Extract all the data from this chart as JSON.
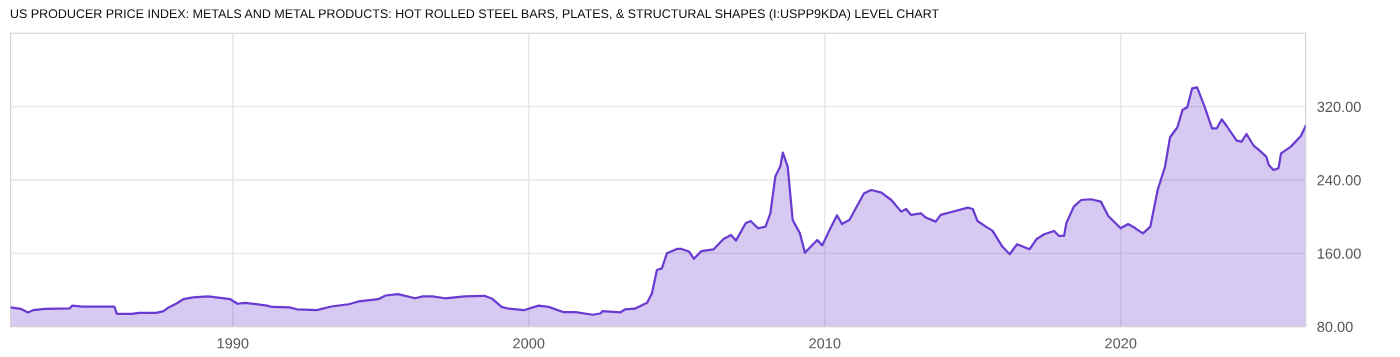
{
  "chart_data": {
    "type": "area",
    "title": "US PRODUCER PRICE INDEX: METALS AND METAL PRODUCTS: HOT ROLLED STEEL BARS, PLATES, & STRUCTURAL SHAPES (I:USPP9KDA) LEVEL CHART",
    "x": [
      "1982-07",
      "1982-11",
      "1983-02",
      "1983-04",
      "1983-09",
      "1984-07",
      "1984-08",
      "1984-12",
      "1986-01",
      "1986-02",
      "1986-08",
      "1986-11",
      "1987-06",
      "1987-09",
      "1987-11",
      "1988-02",
      "1988-05",
      "1988-09",
      "1989-03",
      "1989-12",
      "1990-03",
      "1990-06",
      "1991-03",
      "1991-05",
      "1991-12",
      "1992-03",
      "1992-11",
      "1993-05",
      "1993-12",
      "1994-04",
      "1994-12",
      "1995-03",
      "1995-08",
      "1996-03",
      "1996-06",
      "1996-10",
      "1997-03",
      "1997-11",
      "1998-07",
      "1998-10",
      "1999-02",
      "1999-05",
      "1999-11",
      "2000-05",
      "2000-09",
      "2001-03",
      "2001-08",
      "2002-03",
      "2002-06",
      "2002-07",
      "2003-02",
      "2003-04",
      "2003-08",
      "2004-01",
      "2004-03",
      "2004-05",
      "2004-07",
      "2004-09",
      "2005-01",
      "2005-03",
      "2005-06",
      "2005-08",
      "2005-11",
      "2006-04",
      "2006-08",
      "2006-11",
      "2007-01",
      "2007-05",
      "2007-07",
      "2007-10",
      "2008-01",
      "2008-03",
      "2008-05",
      "2008-07",
      "2008-08",
      "2008-10",
      "2008-12",
      "2009-03",
      "2009-05",
      "2009-08",
      "2009-10",
      "2009-12",
      "2010-03",
      "2010-06",
      "2010-08",
      "2010-11",
      "2011-05",
      "2011-08",
      "2011-12",
      "2012-04",
      "2012-08",
      "2012-10",
      "2012-12",
      "2013-04",
      "2013-06",
      "2013-10",
      "2013-12",
      "2014-04",
      "2014-11",
      "2015-01",
      "2015-03",
      "2015-07",
      "2015-09",
      "2016-01",
      "2016-04",
      "2016-07",
      "2016-12",
      "2017-03",
      "2017-06",
      "2017-10",
      "2017-12",
      "2018-02",
      "2018-03",
      "2018-06",
      "2018-09",
      "2019-01",
      "2019-05",
      "2019-08",
      "2020-01",
      "2020-04",
      "2020-07",
      "2020-10",
      "2021-01",
      "2021-04",
      "2021-07",
      "2021-09",
      "2021-12",
      "2022-02",
      "2022-04",
      "2022-06",
      "2022-08",
      "2022-11",
      "2023-02",
      "2023-04",
      "2023-06",
      "2023-08",
      "2023-12",
      "2024-02",
      "2024-04",
      "2024-07",
      "2024-09",
      "2024-12",
      "2025-01",
      "2025-03",
      "2025-05",
      "2025-06",
      "2025-10",
      "2026-02",
      "2026-04"
    ],
    "series": [
      {
        "color": "#6a3bd0",
        "values": [
          101,
          99.5,
          95.5,
          98,
          99.5,
          100,
          103,
          102,
          102,
          94,
          94,
          95,
          95,
          97,
          101,
          105,
          110,
          112,
          113,
          110,
          105,
          106,
          103,
          101.5,
          101,
          99,
          98,
          102,
          104.5,
          107.5,
          110,
          114,
          115.5,
          111,
          113,
          113,
          111,
          113,
          113.7,
          110.8,
          101.6,
          99.6,
          98,
          103,
          101.6,
          96,
          95.8,
          93,
          94.4,
          97,
          95.5,
          98.8,
          99.6,
          106,
          116.4,
          141.8,
          143.6,
          160,
          164.8,
          164.8,
          162,
          154,
          162.5,
          164.4,
          175.7,
          180,
          173.9,
          192.8,
          195.3,
          187.3,
          189.2,
          203.7,
          243.7,
          254.6,
          269.9,
          254.6,
          196.4,
          181.8,
          160.7,
          169.1,
          174.5,
          168.7,
          185.5,
          201.5,
          192,
          196.4,
          225.5,
          229.1,
          226.2,
          218.2,
          205.5,
          208.4,
          201.9,
          203.7,
          199,
          194.6,
          201.9,
          204.8,
          209.9,
          208.4,
          195.3,
          188.1,
          184.8,
          167.4,
          159,
          169.9,
          164.4,
          175.7,
          180.8,
          184.4,
          179,
          179,
          192.8,
          211,
          218.2,
          219,
          216.4,
          200.8,
          187.3,
          192,
          187.3,
          181.8,
          189.2,
          229.1,
          254.6,
          286.6,
          297.5,
          316.4,
          319.3,
          340,
          341.1,
          320,
          296.4,
          296.4,
          306.2,
          298.9,
          282.9,
          281.9,
          290.2,
          277.1,
          272.8,
          265.5,
          256.4,
          250.9,
          252.8,
          269.1,
          276.4,
          288,
          298.9
        ]
      }
    ],
    "xlim": [
      "1982-07",
      "2026-04"
    ],
    "xticks": [
      "1990",
      "2000",
      "2010",
      "2020"
    ],
    "ylim": [
      80,
      400
    ],
    "yticks": [
      {
        "value": 80,
        "label": "80.00"
      },
      {
        "value": 160,
        "label": "160.00"
      },
      {
        "value": 240,
        "label": "240.00"
      },
      {
        "value": 320,
        "label": "320.00"
      }
    ],
    "grid": true
  }
}
